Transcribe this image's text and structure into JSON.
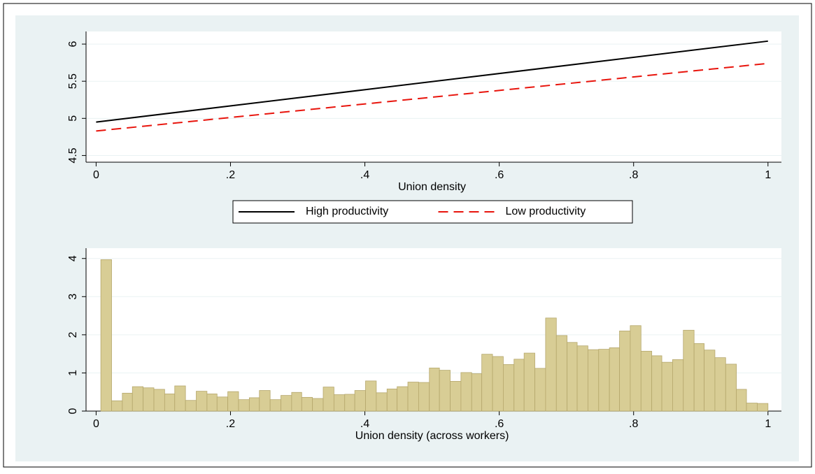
{
  "chart_data": [
    {
      "type": "line",
      "x_label": "Union density",
      "x": [
        0,
        1
      ],
      "series": [
        {
          "name": "High productivity",
          "color": "#000000",
          "style": "solid",
          "values": [
            4.95,
            6.04
          ]
        },
        {
          "name": "Low productivity",
          "color": "#e8140c",
          "style": "dashed",
          "values": [
            4.83,
            5.74
          ]
        }
      ],
      "xlim": [
        -0.015,
        1.02
      ],
      "xticks": [
        0,
        {
          "value": 0.2,
          "label": ".2"
        },
        {
          "value": 0.4,
          "label": ".4"
        },
        {
          "value": 0.6,
          "label": ".6"
        },
        {
          "value": 0.8,
          "label": ".8"
        },
        1
      ],
      "ylim": [
        4.41,
        6.17
      ],
      "yticks": [
        4.5,
        5,
        5.5,
        6
      ],
      "grid": true,
      "legend": "bottom"
    },
    {
      "type": "histogram",
      "x_label": "Union density (across workers)",
      "color": "#d8cd95",
      "bins": [
        0.007,
        0.023,
        0.039,
        0.054,
        0.07,
        0.086,
        0.102,
        0.117,
        0.133,
        0.149,
        0.165,
        0.18,
        0.196,
        0.212,
        0.228,
        0.243,
        0.259,
        0.275,
        0.291,
        0.306,
        0.322,
        0.338,
        0.354,
        0.37,
        0.385,
        0.401,
        0.417,
        0.433,
        0.448,
        0.464,
        0.48,
        0.496,
        0.511,
        0.527,
        0.543,
        0.559,
        0.574,
        0.59,
        0.606,
        0.622,
        0.637,
        0.653,
        0.669,
        0.685,
        0.701,
        0.716,
        0.732,
        0.748,
        0.764,
        0.779,
        0.795,
        0.811,
        0.827,
        0.842,
        0.858,
        0.874,
        0.89,
        0.905,
        0.921,
        0.937,
        0.953,
        0.968,
        0.984,
        1.0
      ],
      "values": [
        3.97,
        0.27,
        0.47,
        0.64,
        0.61,
        0.57,
        0.45,
        0.66,
        0.28,
        0.52,
        0.45,
        0.37,
        0.51,
        0.3,
        0.35,
        0.54,
        0.3,
        0.41,
        0.49,
        0.36,
        0.33,
        0.63,
        0.43,
        0.44,
        0.54,
        0.79,
        0.48,
        0.58,
        0.64,
        0.76,
        0.75,
        1.13,
        1.07,
        0.78,
        1.01,
        0.98,
        1.49,
        1.43,
        1.22,
        1.36,
        1.52,
        1.12,
        2.44,
        1.98,
        1.8,
        1.71,
        1.61,
        1.62,
        1.66,
        2.1,
        2.24,
        1.57,
        1.45,
        1.28,
        1.35,
        2.12,
        1.77,
        1.6,
        1.4,
        1.23,
        0.57,
        0.21,
        0.2
      ],
      "xlim": [
        -0.015,
        1.02
      ],
      "xticks": [
        0,
        {
          "value": 0.2,
          "label": ".2"
        },
        {
          "value": 0.4,
          "label": ".4"
        },
        {
          "value": 0.6,
          "label": ".6"
        },
        {
          "value": 0.8,
          "label": ".8"
        },
        1
      ],
      "ylim": [
        0,
        4.27
      ],
      "yticks": [
        0,
        1,
        2,
        3,
        4
      ],
      "grid": true
    }
  ]
}
